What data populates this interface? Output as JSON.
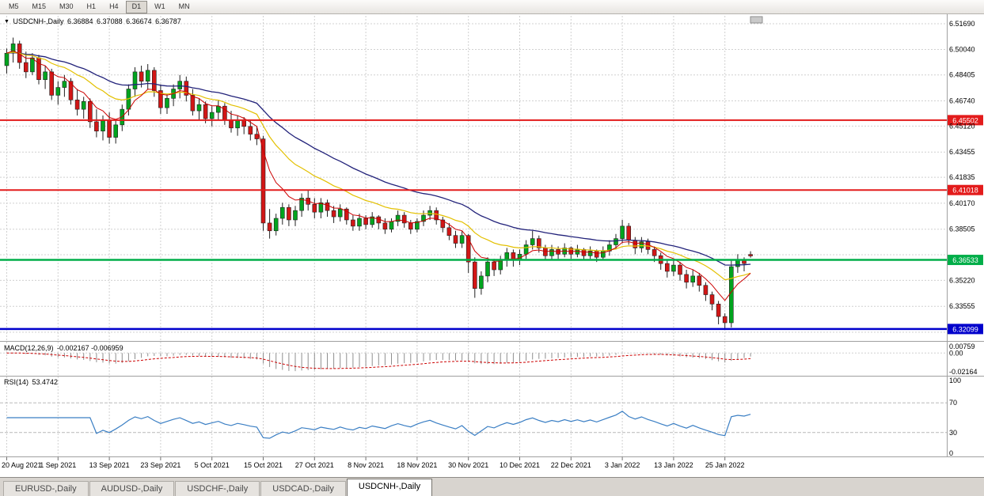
{
  "window": {
    "toolbar_timeframes": [
      {
        "label": "M5"
      },
      {
        "label": "M15"
      },
      {
        "label": "M30"
      },
      {
        "label": "H1"
      },
      {
        "label": "H4"
      },
      {
        "label": "D1",
        "active": true
      },
      {
        "label": "W1"
      },
      {
        "label": "MN"
      }
    ]
  },
  "chart_data": {
    "type": "candlestick",
    "title": "USDCNH-,Daily",
    "icons": {
      "collapse_arrow": "▼"
    },
    "ohlc_current": {
      "open": "6.36884",
      "high": "6.37088",
      "low": "6.36674",
      "close": "6.36787"
    },
    "ylim": [
      6.3189,
      6.5169
    ],
    "price_gridlines": [
      {
        "value": 6.5169,
        "label": "6.51690"
      },
      {
        "value": 6.5004,
        "label": "6.50040"
      },
      {
        "value": 6.48405,
        "label": "6.48405"
      },
      {
        "value": 6.4674,
        "label": "6.46740"
      },
      {
        "value": 6.4512,
        "label": "6.45120"
      },
      {
        "value": 6.43455,
        "label": "6.43455"
      },
      {
        "value": 6.41835,
        "label": "6.41835"
      },
      {
        "value": 6.4017,
        "label": "6.40170"
      },
      {
        "value": 6.38505,
        "label": "6.38505"
      },
      {
        "value": 6.36863,
        "label": ""
      },
      {
        "value": 6.3522,
        "label": "6.35220"
      },
      {
        "value": 6.33555,
        "label": "6.33555"
      },
      {
        "value": 6.3189,
        "label": ""
      }
    ],
    "levels": [
      {
        "value": 6.45502,
        "label": "6.45502",
        "color": "#e31b1b",
        "width": 2
      },
      {
        "value": 6.41018,
        "label": "6.41018",
        "color": "#e31b1b",
        "width": 2
      },
      {
        "value": 6.36533,
        "label": "6.36533",
        "color": "#00ae49",
        "width": 2.5
      },
      {
        "value": 6.32099,
        "label": "6.32099",
        "color": "#0000cc",
        "width": 2.5
      }
    ],
    "x_labels": [
      {
        "i": 0,
        "text": "20 Aug 2021"
      },
      {
        "i": 8,
        "text": "1 Sep 2021"
      },
      {
        "i": 16,
        "text": "13 Sep 2021"
      },
      {
        "i": 24,
        "text": "23 Sep 2021"
      },
      {
        "i": 32,
        "text": "5 Oct 2021"
      },
      {
        "i": 40,
        "text": "15 Oct 2021"
      },
      {
        "i": 48,
        "text": "27 Oct 2021"
      },
      {
        "i": 56,
        "text": "8 Nov 2021"
      },
      {
        "i": 64,
        "text": "18 Nov 2021"
      },
      {
        "i": 72,
        "text": "30 Nov 2021"
      },
      {
        "i": 80,
        "text": "10 Dec 2021"
      },
      {
        "i": 88,
        "text": "22 Dec 2021"
      },
      {
        "i": 96,
        "text": "3 Jan 2022"
      },
      {
        "i": 104,
        "text": "13 Jan 2022"
      },
      {
        "i": 112,
        "text": "25 Jan 2022"
      }
    ],
    "candles": [
      [
        6.49,
        6.501,
        6.485,
        6.498
      ],
      [
        6.498,
        6.508,
        6.492,
        6.504
      ],
      [
        6.504,
        6.506,
        6.488,
        6.492
      ],
      [
        6.492,
        6.499,
        6.482,
        6.486
      ],
      [
        6.486,
        6.498,
        6.484,
        6.495
      ],
      [
        6.495,
        6.497,
        6.478,
        6.481
      ],
      [
        6.481,
        6.49,
        6.475,
        6.486
      ],
      [
        6.486,
        6.488,
        6.468,
        6.471
      ],
      [
        6.471,
        6.48,
        6.465,
        6.476
      ],
      [
        6.476,
        6.484,
        6.47,
        6.48
      ],
      [
        6.48,
        6.482,
        6.465,
        6.468
      ],
      [
        6.468,
        6.475,
        6.458,
        6.462
      ],
      [
        6.462,
        6.47,
        6.456,
        6.467
      ],
      [
        6.467,
        6.469,
        6.45,
        6.454
      ],
      [
        6.454,
        6.462,
        6.444,
        6.448
      ],
      [
        6.448,
        6.458,
        6.442,
        6.455
      ],
      [
        6.455,
        6.46,
        6.44,
        6.444
      ],
      [
        6.444,
        6.455,
        6.44,
        6.452
      ],
      [
        6.452,
        6.465,
        6.448,
        6.462
      ],
      [
        6.462,
        6.478,
        6.458,
        6.475
      ],
      [
        6.475,
        6.489,
        6.47,
        6.486
      ],
      [
        6.486,
        6.49,
        6.476,
        6.48
      ],
      [
        6.48,
        6.491,
        6.475,
        6.487
      ],
      [
        6.487,
        6.489,
        6.47,
        6.474
      ],
      [
        6.474,
        6.478,
        6.459,
        6.463
      ],
      [
        6.463,
        6.472,
        6.459,
        6.469
      ],
      [
        6.469,
        6.478,
        6.464,
        6.475
      ],
      [
        6.475,
        6.484,
        6.469,
        6.48
      ],
      [
        6.48,
        6.483,
        6.467,
        6.471
      ],
      [
        6.471,
        6.475,
        6.458,
        6.461
      ],
      [
        6.461,
        6.469,
        6.455,
        6.465
      ],
      [
        6.465,
        6.467,
        6.453,
        6.456
      ],
      [
        6.456,
        6.464,
        6.451,
        6.46
      ],
      [
        6.46,
        6.468,
        6.455,
        6.464
      ],
      [
        6.464,
        6.466,
        6.452,
        6.455
      ],
      [
        6.455,
        6.461,
        6.447,
        6.45
      ],
      [
        6.45,
        6.458,
        6.445,
        6.455
      ],
      [
        6.455,
        6.457,
        6.446,
        6.451
      ],
      [
        6.451,
        6.455,
        6.442,
        6.446
      ],
      [
        6.446,
        6.451,
        6.439,
        6.443
      ],
      [
        6.443,
        6.445,
        6.384,
        6.389
      ],
      [
        6.389,
        6.398,
        6.379,
        6.384
      ],
      [
        6.384,
        6.395,
        6.381,
        6.392
      ],
      [
        6.392,
        6.402,
        6.388,
        6.399
      ],
      [
        6.399,
        6.401,
        6.387,
        6.391
      ],
      [
        6.391,
        6.4,
        6.387,
        6.397
      ],
      [
        6.397,
        6.408,
        6.393,
        6.405
      ],
      [
        6.405,
        6.41,
        6.397,
        6.401
      ],
      [
        6.401,
        6.405,
        6.392,
        6.396
      ],
      [
        6.396,
        6.405,
        6.392,
        6.402
      ],
      [
        6.402,
        6.404,
        6.393,
        6.397
      ],
      [
        6.397,
        6.4,
        6.389,
        6.393
      ],
      [
        6.393,
        6.401,
        6.39,
        6.398
      ],
      [
        6.398,
        6.399,
        6.388,
        6.391
      ],
      [
        6.391,
        6.394,
        6.384,
        6.387
      ],
      [
        6.387,
        6.395,
        6.384,
        6.392
      ],
      [
        6.392,
        6.394,
        6.385,
        6.388
      ],
      [
        6.388,
        6.396,
        6.386,
        6.393
      ],
      [
        6.393,
        6.394,
        6.385,
        6.389
      ],
      [
        6.389,
        6.392,
        6.382,
        6.385
      ],
      [
        6.385,
        6.392,
        6.383,
        6.39
      ],
      [
        6.39,
        6.397,
        6.387,
        6.394
      ],
      [
        6.394,
        6.396,
        6.386,
        6.389
      ],
      [
        6.389,
        6.391,
        6.382,
        6.385
      ],
      [
        6.385,
        6.392,
        6.383,
        6.39
      ],
      [
        6.39,
        6.397,
        6.387,
        6.394
      ],
      [
        6.394,
        6.4,
        6.391,
        6.397
      ],
      [
        6.397,
        6.399,
        6.388,
        6.391
      ],
      [
        6.391,
        6.393,
        6.383,
        6.386
      ],
      [
        6.386,
        6.389,
        6.378,
        6.381
      ],
      [
        6.381,
        6.384,
        6.373,
        6.376
      ],
      [
        6.376,
        6.384,
        6.373,
        6.381
      ],
      [
        6.381,
        6.382,
        6.357,
        6.364
      ],
      [
        6.364,
        6.367,
        6.341,
        6.347
      ],
      [
        6.347,
        6.358,
        6.343,
        6.355
      ],
      [
        6.355,
        6.367,
        6.351,
        6.364
      ],
      [
        6.364,
        6.366,
        6.355,
        6.359
      ],
      [
        6.359,
        6.368,
        6.356,
        6.365
      ],
      [
        6.365,
        6.373,
        6.361,
        6.37
      ],
      [
        6.37,
        6.372,
        6.361,
        6.365
      ],
      [
        6.365,
        6.372,
        6.362,
        6.369
      ],
      [
        6.369,
        6.378,
        6.366,
        6.375
      ],
      [
        6.375,
        6.384,
        6.372,
        6.379
      ],
      [
        6.379,
        6.381,
        6.37,
        6.373
      ],
      [
        6.373,
        6.375,
        6.365,
        6.368
      ],
      [
        6.368,
        6.375,
        6.365,
        6.372
      ],
      [
        6.372,
        6.374,
        6.366,
        6.369
      ],
      [
        6.369,
        6.376,
        6.367,
        6.373
      ],
      [
        6.373,
        6.374,
        6.366,
        6.369
      ],
      [
        6.369,
        6.375,
        6.367,
        6.372
      ],
      [
        6.372,
        6.373,
        6.365,
        6.368
      ],
      [
        6.368,
        6.374,
        6.366,
        6.371
      ],
      [
        6.371,
        6.372,
        6.364,
        6.367
      ],
      [
        6.367,
        6.374,
        6.365,
        6.371
      ],
      [
        6.371,
        6.378,
        6.368,
        6.375
      ],
      [
        6.375,
        6.382,
        6.372,
        6.379
      ],
      [
        6.379,
        6.391,
        6.376,
        6.387
      ],
      [
        6.387,
        6.389,
        6.375,
        6.378
      ],
      [
        6.378,
        6.38,
        6.369,
        6.373
      ],
      [
        6.373,
        6.38,
        6.37,
        6.377
      ],
      [
        6.377,
        6.379,
        6.369,
        6.372
      ],
      [
        6.372,
        6.374,
        6.364,
        6.368
      ],
      [
        6.368,
        6.37,
        6.359,
        6.363
      ],
      [
        6.363,
        6.365,
        6.354,
        6.358
      ],
      [
        6.358,
        6.366,
        6.355,
        6.362
      ],
      [
        6.362,
        6.364,
        6.352,
        6.356
      ],
      [
        6.356,
        6.359,
        6.347,
        6.351
      ],
      [
        6.351,
        6.359,
        6.348,
        6.355
      ],
      [
        6.355,
        6.357,
        6.345,
        6.349
      ],
      [
        6.349,
        6.351,
        6.339,
        6.343
      ],
      [
        6.343,
        6.345,
        6.333,
        6.337
      ],
      [
        6.337,
        6.339,
        6.324,
        6.329
      ],
      [
        6.329,
        6.331,
        6.321,
        6.325
      ],
      [
        6.325,
        6.365,
        6.322,
        6.361
      ],
      [
        6.361,
        6.369,
        6.357,
        6.365
      ],
      [
        6.365,
        6.367,
        6.358,
        6.363
      ],
      [
        6.36884,
        6.37088,
        6.36674,
        6.36787
      ]
    ],
    "ma_periods": {
      "fast": 7,
      "mid": 18,
      "slow": 34
    },
    "indicators": {
      "macd": {
        "label": "MACD(12,26,9)",
        "values": "-0.002167 -0.006959",
        "params": [
          12,
          26,
          9
        ],
        "axis_labels": [
          "0.00759",
          "0.00",
          "-0.02164"
        ]
      },
      "rsi": {
        "label": "RSI(14)",
        "value": "53.4742",
        "period": 14,
        "levels": [
          70,
          30
        ],
        "axis_labels": [
          "100",
          "70",
          "30",
          "0"
        ]
      }
    },
    "colors": {
      "bull": "#00a41e",
      "bear": "#d21616",
      "candle_outline": "#222222",
      "ma_fast": "#cc0000",
      "ma_mid": "#e3c000",
      "ma_slow": "#22227a",
      "grid": "#d0d0d0",
      "separator": "#a0a0a0",
      "axis_text": "#000000",
      "rsi_line": "#3b7fc4",
      "macd_hist": "#8f8f8f",
      "macd_signal": "#cc0000",
      "shift_marker": "#c9c9c9"
    }
  },
  "tabs": [
    {
      "label": "EURUSD-,Daily"
    },
    {
      "label": "AUDUSD-,Daily"
    },
    {
      "label": "USDCHF-,Daily"
    },
    {
      "label": "USDCAD-,Daily"
    },
    {
      "label": "USDCNH-,Daily",
      "active": true
    }
  ]
}
